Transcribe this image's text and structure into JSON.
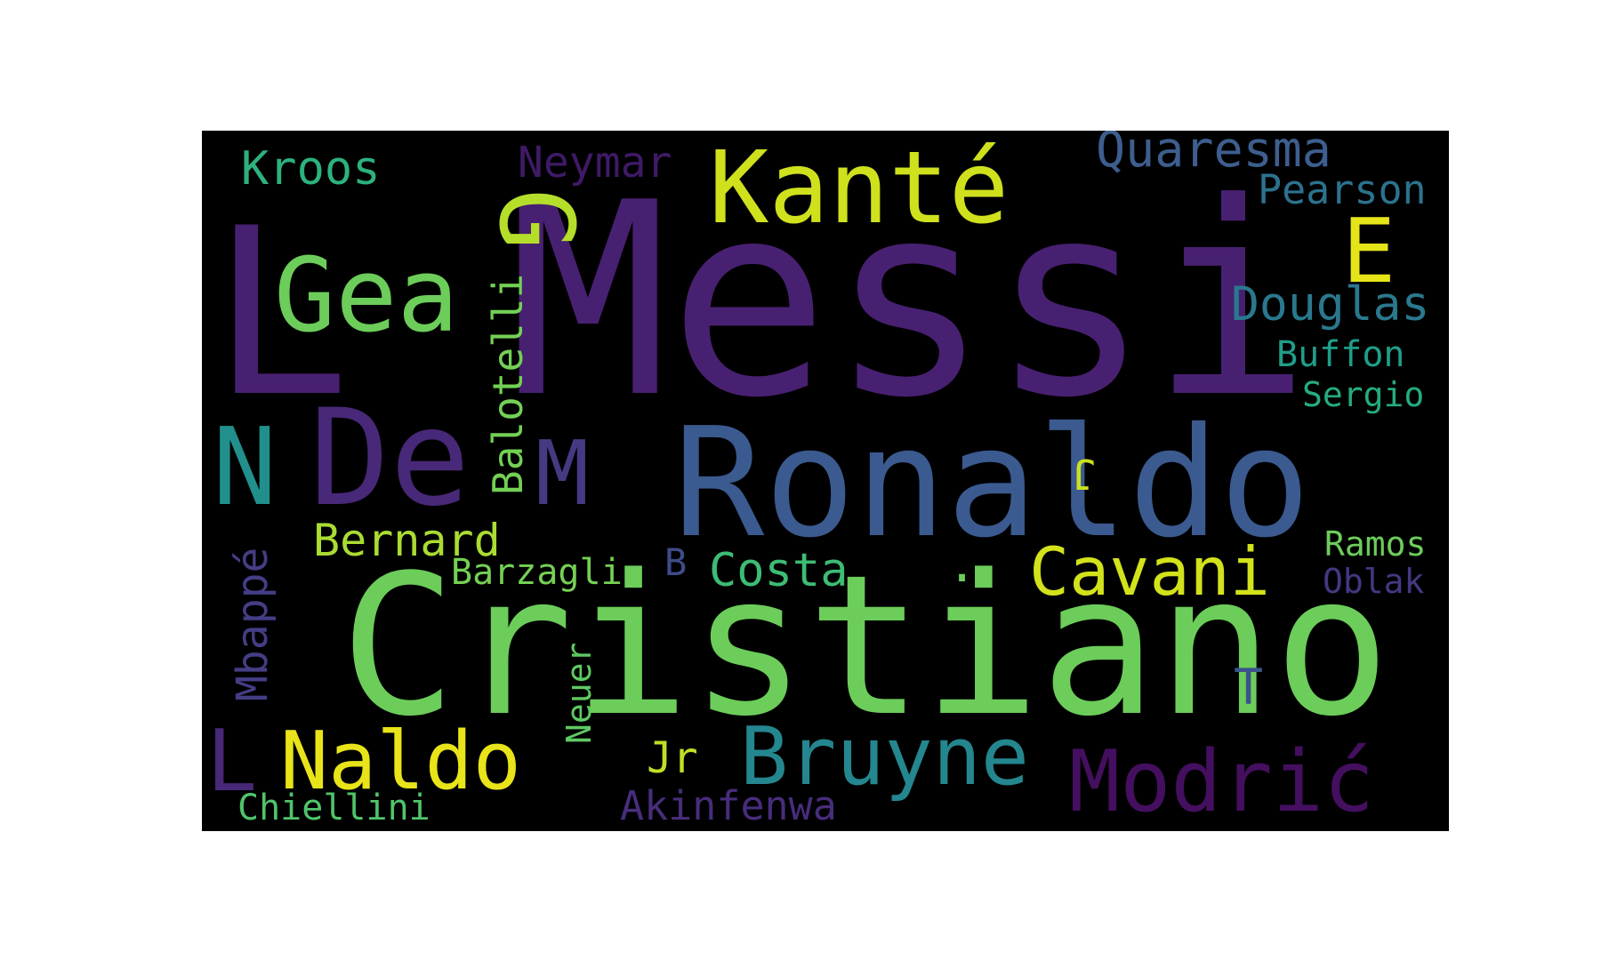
{
  "background_color": "#000000",
  "colormap": "viridis",
  "words": [
    {
      "id": "messi",
      "text": "Messi",
      "color": "#482071"
    },
    {
      "id": "cristiano",
      "text": "Cristiano",
      "color": "#6ccd5a"
    },
    {
      "id": "ronaldo",
      "text": "Ronaldo",
      "color": "#3b5a8f"
    },
    {
      "id": "kante",
      "text": "Kanté",
      "color": "#cfe11c"
    },
    {
      "id": "gea",
      "text": "Gea",
      "color": "#6ccd5a"
    },
    {
      "id": "de",
      "text": "De",
      "color": "#482878"
    },
    {
      "id": "l-big",
      "text": "L",
      "color": "#482071"
    },
    {
      "id": "n",
      "text": "N",
      "color": "#21908c"
    },
    {
      "id": "m",
      "text": "M",
      "color": "#453a82"
    },
    {
      "id": "g",
      "text": "G",
      "color": "#b5de2b"
    },
    {
      "id": "e",
      "text": "E",
      "color": "#e5e419"
    },
    {
      "id": "naldo",
      "text": "Naldo",
      "color": "#e8e419"
    },
    {
      "id": "bruyne",
      "text": "Bruyne",
      "color": "#24868e"
    },
    {
      "id": "modric",
      "text": "Modrić",
      "color": "#440f5e"
    },
    {
      "id": "cavani",
      "text": "Cavani",
      "color": "#d2e21b"
    },
    {
      "id": "bernard",
      "text": "Bernard",
      "color": "#aadc32"
    },
    {
      "id": "costa",
      "text": "Costa",
      "color": "#3dbc74"
    },
    {
      "id": "l-small",
      "text": "L",
      "color": "#482878"
    },
    {
      "id": "kroos",
      "text": "Kroos",
      "color": "#2db27d"
    },
    {
      "id": "neymar",
      "text": "Neymar",
      "color": "#3f1a67"
    },
    {
      "id": "quaresma",
      "text": "Quaresma",
      "color": "#3d5e8e"
    },
    {
      "id": "pearson",
      "text": "Pearson",
      "color": "#2c728e"
    },
    {
      "id": "douglas",
      "text": "Douglas",
      "color": "#2a788e"
    },
    {
      "id": "buffon",
      "text": "Buffon",
      "color": "#1f9e89"
    },
    {
      "id": "sergio",
      "text": "Sergio",
      "color": "#25ab82"
    },
    {
      "id": "balotelli",
      "text": "Balotelli",
      "color": "#73d055"
    },
    {
      "id": "mbappe",
      "text": "Mbappé",
      "color": "#433e85"
    },
    {
      "id": "barzagli",
      "text": "Barzagli",
      "color": "#75d054"
    },
    {
      "id": "b",
      "text": "B",
      "color": "#3e4c8a"
    },
    {
      "id": "ramos",
      "text": "Ramos",
      "color": "#6ccd5a"
    },
    {
      "id": "oblak",
      "text": "Oblak",
      "color": "#453781"
    },
    {
      "id": "t",
      "text": "T",
      "color": "#3b528b"
    },
    {
      "id": "neuer",
      "text": "Neuer",
      "color": "#5ec962"
    },
    {
      "id": "jr",
      "text": "Jr",
      "color": "#c2df23"
    },
    {
      "id": "akinfenwa",
      "text": "Akinfenwa",
      "color": "#472d7b"
    },
    {
      "id": "chiellini",
      "text": "Chiellini",
      "color": "#50c46a"
    },
    {
      "id": "j",
      "text": "J",
      "color": "#cae11f"
    },
    {
      "id": "dot1",
      "text": ".",
      "color": "#6ccd5a"
    },
    {
      "id": "dot2",
      "text": ".",
      "color": "#6ccd5a"
    }
  ]
}
